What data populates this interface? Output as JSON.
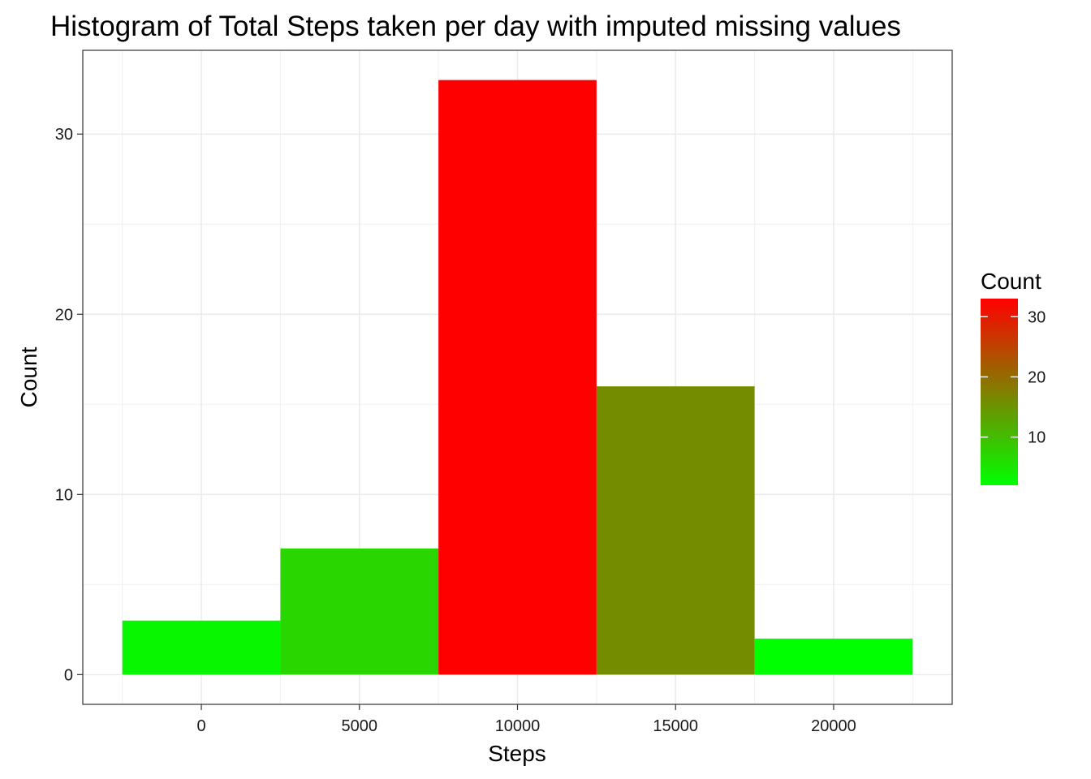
{
  "chart_data": {
    "type": "bar",
    "title": "Histogram of Total Steps taken per day with imputed missing values",
    "xlabel": "Steps",
    "ylabel": "Count",
    "bins": [
      {
        "x_start": -2500,
        "x_end": 2500,
        "count": 3
      },
      {
        "x_start": 2500,
        "x_end": 7500,
        "count": 7
      },
      {
        "x_start": 7500,
        "x_end": 12500,
        "count": 33
      },
      {
        "x_start": 12500,
        "x_end": 17500,
        "count": 16
      },
      {
        "x_start": 17500,
        "x_end": 22500,
        "count": 2
      }
    ],
    "x_ticks": [
      0,
      5000,
      10000,
      15000,
      20000
    ],
    "y_ticks": [
      0,
      10,
      20,
      30
    ],
    "xlim": [
      -3750,
      23750
    ],
    "ylim": [
      -1.65,
      34.65
    ],
    "grid": true,
    "fill_scale": {
      "low_color": "#00ff00",
      "high_color": "#ff0000",
      "min": 2,
      "max": 33
    },
    "legend": {
      "title": "Count",
      "placement": "right",
      "ticks": [
        10,
        20,
        30
      ]
    }
  }
}
